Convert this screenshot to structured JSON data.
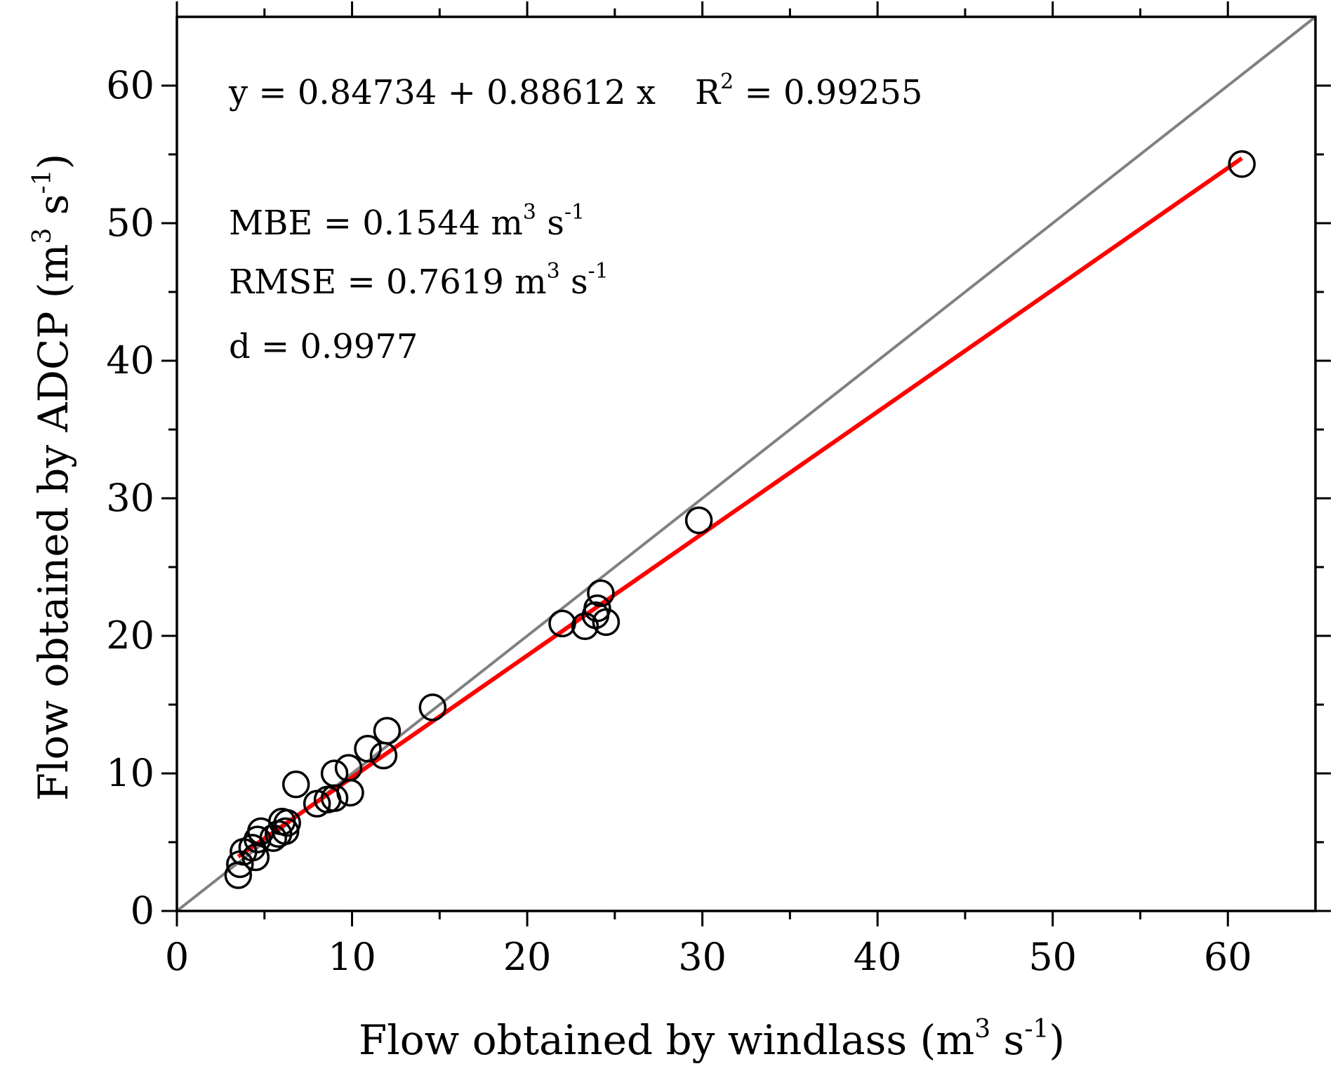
{
  "chart_data": {
    "type": "scatter",
    "xlabel": "Flow obtained by windlass (m",
    "ylabel": "Flow obtained by ADCP (m",
    "unit_parts": {
      "sup3": "3",
      "s": " s",
      "supneg1": "-1",
      "close": ")"
    },
    "xlim": [
      0,
      65
    ],
    "ylim": [
      0,
      65
    ],
    "xticks": [
      0,
      10,
      20,
      30,
      40,
      50,
      60
    ],
    "yticks": [
      0,
      10,
      20,
      30,
      40,
      50,
      60
    ],
    "xtick_labels": [
      "0",
      "10",
      "20",
      "30",
      "40",
      "50",
      "60"
    ],
    "ytick_labels": [
      "0",
      "10",
      "20",
      "30",
      "40",
      "50",
      "60"
    ],
    "minor_step": 5,
    "grid": false,
    "annotations": {
      "equation": "y = 0.84734 + 0.88612 x",
      "r2_prefix": "R",
      "r2_sup": "2",
      "r2_value": " = 0.99255",
      "mbe_text": "MBE = 0.1544 m",
      "rmse_text": "RMSE = 0.7619 m",
      "d_text": "d = 0.9977"
    },
    "series": [
      {
        "kind": "scatter",
        "marker": "open-circle",
        "color": "#000000",
        "x": [
          60.8,
          29.8,
          24.2,
          24.0,
          23.9,
          24.5,
          23.3,
          22.0,
          14.6,
          12.0,
          11.8,
          10.9,
          9.8,
          9.9,
          9.0,
          9.0,
          8.6,
          8.0,
          6.8,
          6.3,
          6.2,
          6.0,
          5.8,
          5.5,
          4.8,
          4.6,
          4.5,
          4.3,
          3.8,
          3.6,
          3.5
        ],
        "y": [
          54.3,
          28.4,
          23.1,
          22.0,
          21.5,
          21.0,
          20.7,
          20.9,
          14.8,
          13.1,
          11.3,
          11.8,
          10.4,
          8.6,
          10.0,
          8.2,
          8.1,
          7.8,
          9.2,
          6.4,
          5.8,
          6.5,
          5.6,
          5.3,
          5.8,
          5.2,
          3.9,
          4.6,
          4.3,
          3.4,
          2.6
        ]
      },
      {
        "kind": "fit-line",
        "color": "#ff0000",
        "intercept": 0.84734,
        "slope": 0.88612,
        "x_range": [
          3.5,
          60.8
        ]
      },
      {
        "kind": "identity-line",
        "color": "#808080",
        "x_range": [
          0,
          65
        ]
      }
    ]
  }
}
